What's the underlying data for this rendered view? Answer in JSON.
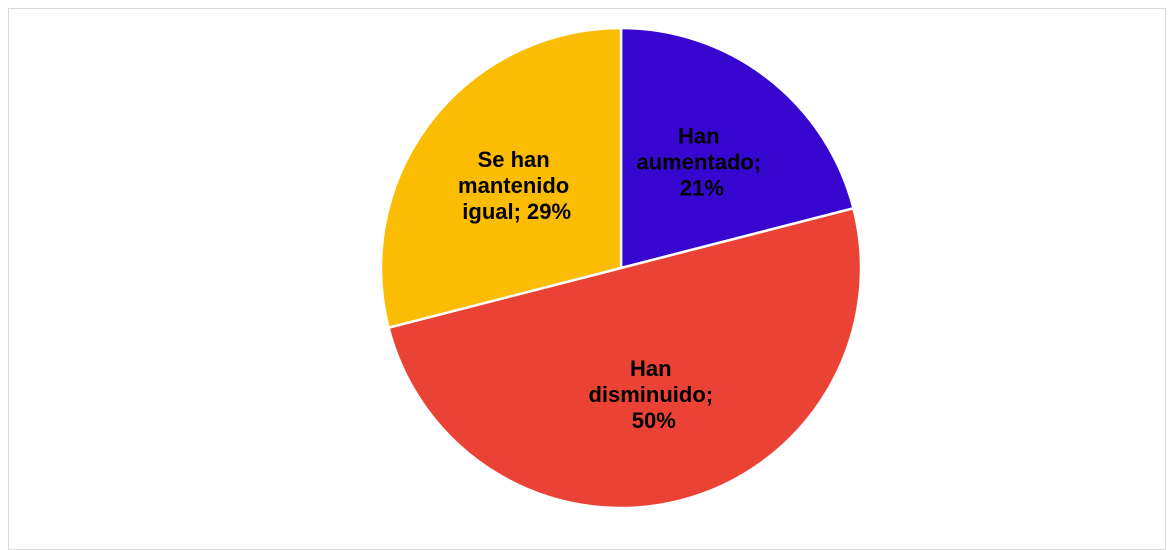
{
  "chart_data": {
    "type": "pie",
    "values": [
      21,
      50,
      29
    ],
    "value_labels": [
      "Han aumentado; 21%",
      "Han disminuido; 50%",
      "Se han mantenido igual; 29%"
    ],
    "colors": [
      "#3707d0",
      "#ea4335",
      "#fbbc04"
    ]
  }
}
